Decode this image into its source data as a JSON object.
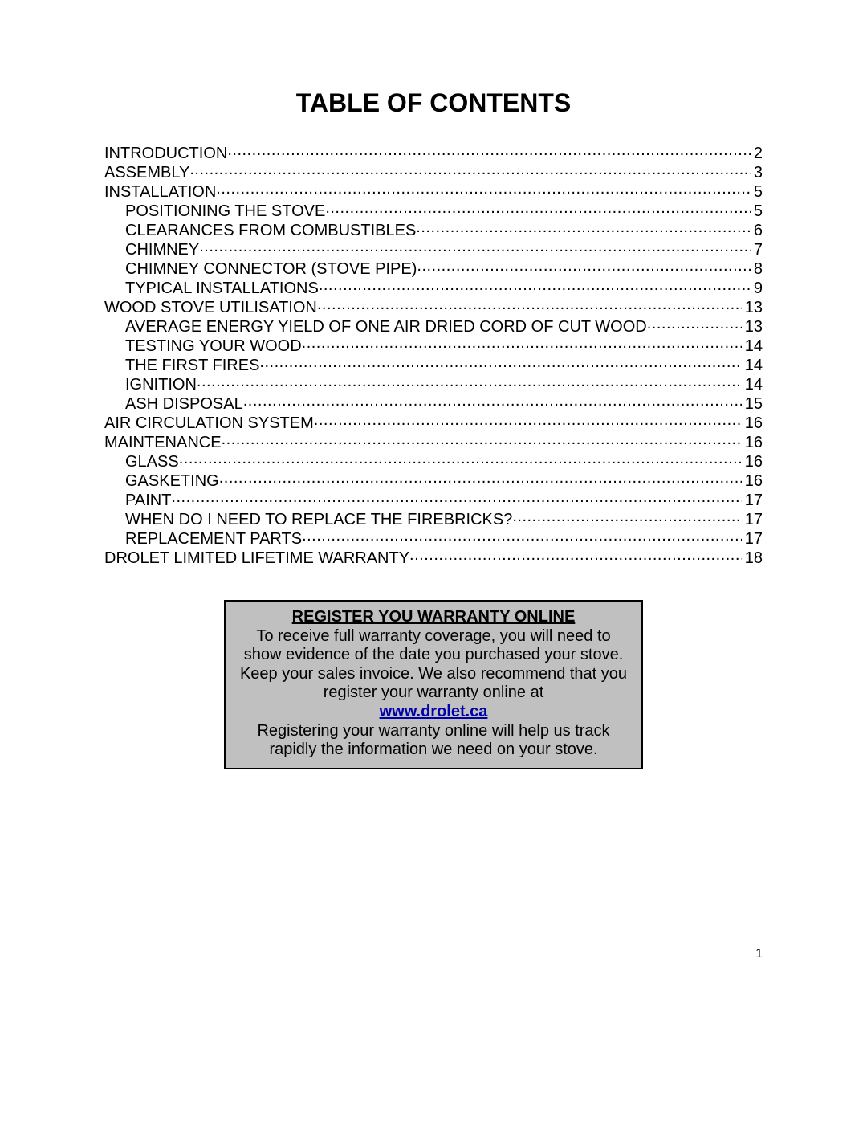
{
  "title": "TABLE OF CONTENTS",
  "toc": [
    {
      "level": 0,
      "label": "INTRODUCTION",
      "page": "2"
    },
    {
      "level": 0,
      "label": "ASSEMBLY",
      "page": "3"
    },
    {
      "level": 0,
      "label": "INSTALLATION",
      "page": "5"
    },
    {
      "level": 1,
      "label": "POSITIONING THE STOVE",
      "page": "5"
    },
    {
      "level": 1,
      "label": "CLEARANCES FROM COMBUSTIBLES",
      "page": "6"
    },
    {
      "level": 1,
      "label": "CHIMNEY ",
      "page": "7"
    },
    {
      "level": 1,
      "label": "CHIMNEY CONNECTOR (STOVE PIPE) ",
      "page": "8"
    },
    {
      "level": 1,
      "label": "TYPICAL INSTALLATIONS",
      "page": "9"
    },
    {
      "level": 0,
      "label": "WOOD STOVE UTILISATION ",
      "page": "13"
    },
    {
      "level": 1,
      "label": "AVERAGE ENERGY YIELD OF ONE AIR DRIED CORD OF CUT WOOD",
      "page": "13"
    },
    {
      "level": 1,
      "label": "TESTING YOUR WOOD ",
      "page": "14"
    },
    {
      "level": 1,
      "label": "THE FIRST FIRES",
      "page": "14"
    },
    {
      "level": 1,
      "label": "IGNITION",
      "page": "14"
    },
    {
      "level": 1,
      "label": "ASH DISPOSAL ",
      "page": "15"
    },
    {
      "level": 0,
      "label": "AIR CIRCULATION SYSTEM ",
      "page": "16"
    },
    {
      "level": 0,
      "label": "MAINTENANCE ",
      "page": "16"
    },
    {
      "level": 1,
      "label": "GLASS",
      "page": "16"
    },
    {
      "level": 1,
      "label": "GASKETING",
      "page": "16"
    },
    {
      "level": 1,
      "label": "PAINT ",
      "page": "17"
    },
    {
      "level": 1,
      "label": "WHEN DO I NEED TO REPLACE THE FIREBRICKS? ",
      "page": "17"
    },
    {
      "level": 1,
      "label": "REPLACEMENT PARTS",
      "page": "17"
    },
    {
      "level": 0,
      "label": "DROLET LIMITED LIFETIME WARRANTY",
      "page": "18"
    }
  ],
  "warranty": {
    "heading": "REGISTER YOU WARRANTY ONLINE",
    "body1": "To receive full warranty coverage, you will need to show evidence of the date you purchased your stove. Keep your sales invoice.  We also recommend that you register your warranty online at",
    "link": "www.drolet.ca",
    "body2": "Registering your warranty online will help us track rapidly the information we need on your stove."
  },
  "pageNumber": "1"
}
